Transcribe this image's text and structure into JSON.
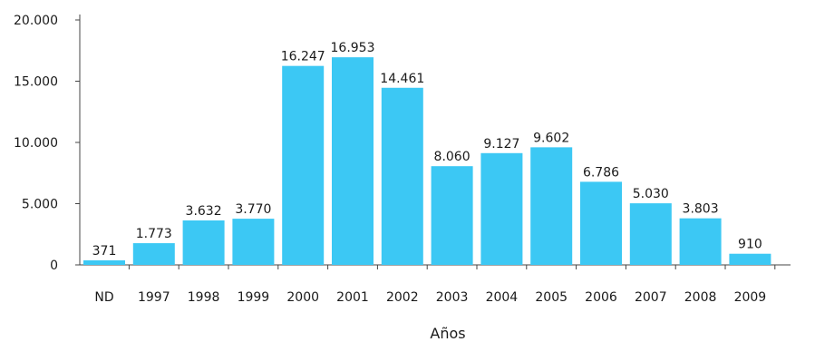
{
  "chart_data": {
    "type": "bar",
    "title": "",
    "xlabel": "Años",
    "ylabel": "",
    "categories": [
      "ND",
      "1997",
      "1998",
      "1999",
      "2000",
      "2001",
      "2002",
      "2003",
      "2004",
      "2005",
      "2006",
      "2007",
      "2008",
      "2009"
    ],
    "values": [
      371,
      1773,
      3632,
      3770,
      16247,
      16953,
      14461,
      8060,
      9127,
      9602,
      6786,
      5030,
      3803,
      910
    ],
    "value_labels": [
      "371",
      "1.773",
      "3.632",
      "3.770",
      "16.247",
      "16.953",
      "14.461",
      "8.060",
      "9.127",
      "9.602",
      "6.786",
      "5.030",
      "3.803",
      "910"
    ],
    "yticks": [
      0,
      5000,
      10000,
      15000,
      20000
    ],
    "ytick_labels": [
      "0",
      "5.000",
      "10.000",
      "15.000",
      "20.000"
    ],
    "ylim": [
      0,
      20000
    ],
    "grid": false,
    "bar_color": "#3cc8f4"
  }
}
